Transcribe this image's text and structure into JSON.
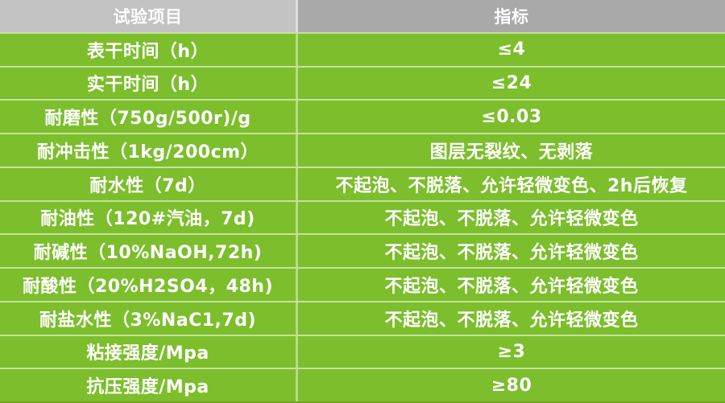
{
  "table": {
    "title": "coating-performance-spec-table",
    "header": {
      "item_label": "试验项目",
      "value_label": "指标"
    },
    "rows": [
      {
        "item": "表干时间（h）",
        "value": "≤4"
      },
      {
        "item": "实干时间（h）",
        "value": "≤24"
      },
      {
        "item": "耐磨性（750g/500r)/g",
        "value": "≤0.03"
      },
      {
        "item": "耐冲击性（1kg/200cm）",
        "value": "图层无裂纹、无剥落"
      },
      {
        "item": "耐水性（7d）",
        "value": "不起泡、不脱落、允许轻微变色、2h后恢复"
      },
      {
        "item": "耐油性（120#汽油，7d)",
        "value": "不起泡、不脱落、允许轻微变色"
      },
      {
        "item": "耐碱性（10%NaOH,72h)",
        "value": "不起泡、不脱落、允许轻微变色"
      },
      {
        "item": "耐酸性（20%H2SO4，48h)",
        "value": "不起泡、不脱落、允许轻微变色"
      },
      {
        "item": "耐盐水性（3%NaC1,7d)",
        "value": "不起泡、不脱落、允许轻微变色"
      },
      {
        "item": "粘接强度/Mpa",
        "value": "≥3"
      },
      {
        "item": "抗压强度/Mpa",
        "value": "≥80"
      }
    ],
    "colors": {
      "body_green": "#7cbe2c",
      "header_left_gray": "#c3c3c3",
      "header_right_gray": "#a9a9a9",
      "separator_light": "rgba(255,255,255,0.5)",
      "bottom_edge_green": "#6ea522",
      "text": "#ffffff"
    }
  }
}
